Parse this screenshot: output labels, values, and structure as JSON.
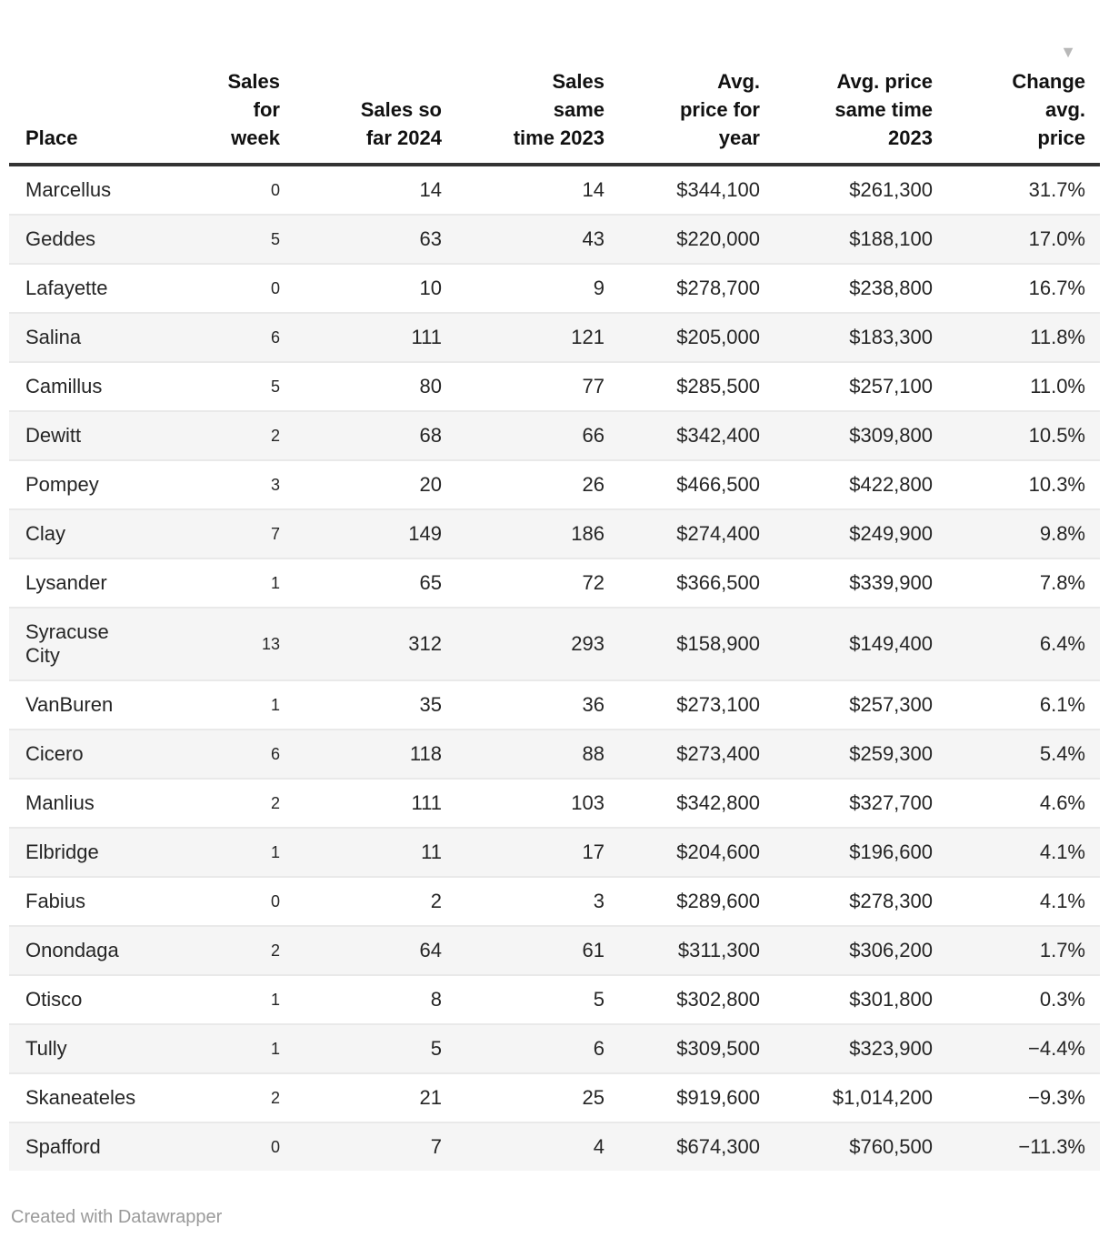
{
  "chart_data": {
    "type": "table",
    "columns": [
      {
        "key": "place",
        "label": "Place",
        "align": "left"
      },
      {
        "key": "sales_week",
        "label": "Sales\nfor\nweek",
        "align": "right"
      },
      {
        "key": "sales_2024",
        "label": "Sales so\nfar 2024",
        "align": "right"
      },
      {
        "key": "sales_2023",
        "label": "Sales\nsame\ntime 2023",
        "align": "right"
      },
      {
        "key": "avg_price_year",
        "label": "Avg.\nprice for\nyear",
        "align": "right"
      },
      {
        "key": "avg_price_2023",
        "label": "Avg. price\nsame time\n2023",
        "align": "right"
      },
      {
        "key": "change_avg_price",
        "label": "Change\navg.\nprice",
        "align": "right",
        "sorted": "desc"
      }
    ],
    "rows": [
      [
        "Marcellus",
        "0",
        "14",
        "14",
        "$344,100",
        "$261,300",
        "31.7%"
      ],
      [
        "Geddes",
        "5",
        "63",
        "43",
        "$220,000",
        "$188,100",
        "17.0%"
      ],
      [
        "Lafayette",
        "0",
        "10",
        "9",
        "$278,700",
        "$238,800",
        "16.7%"
      ],
      [
        "Salina",
        "6",
        "111",
        "121",
        "$205,000",
        "$183,300",
        "11.8%"
      ],
      [
        "Camillus",
        "5",
        "80",
        "77",
        "$285,500",
        "$257,100",
        "11.0%"
      ],
      [
        "Dewitt",
        "2",
        "68",
        "66",
        "$342,400",
        "$309,800",
        "10.5%"
      ],
      [
        "Pompey",
        "3",
        "20",
        "26",
        "$466,500",
        "$422,800",
        "10.3%"
      ],
      [
        "Clay",
        "7",
        "149",
        "186",
        "$274,400",
        "$249,900",
        "9.8%"
      ],
      [
        "Lysander",
        "1",
        "65",
        "72",
        "$366,500",
        "$339,900",
        "7.8%"
      ],
      [
        "Syracuse City",
        "13",
        "312",
        "293",
        "$158,900",
        "$149,400",
        "6.4%"
      ],
      [
        "VanBuren",
        "1",
        "35",
        "36",
        "$273,100",
        "$257,300",
        "6.1%"
      ],
      [
        "Cicero",
        "6",
        "118",
        "88",
        "$273,400",
        "$259,300",
        "5.4%"
      ],
      [
        "Manlius",
        "2",
        "111",
        "103",
        "$342,800",
        "$327,700",
        "4.6%"
      ],
      [
        "Elbridge",
        "1",
        "11",
        "17",
        "$204,600",
        "$196,600",
        "4.1%"
      ],
      [
        "Fabius",
        "0",
        "2",
        "3",
        "$289,600",
        "$278,300",
        "4.1%"
      ],
      [
        "Onondaga",
        "2",
        "64",
        "61",
        "$311,300",
        "$306,200",
        "1.7%"
      ],
      [
        "Otisco",
        "1",
        "8",
        "5",
        "$302,800",
        "$301,800",
        "0.3%"
      ],
      [
        "Tully",
        "1",
        "5",
        "6",
        "$309,500",
        "$323,900",
        "−4.4%"
      ],
      [
        "Skaneateles",
        "2",
        "21",
        "25",
        "$919,600",
        "$1,014,200",
        "−9.3%"
      ],
      [
        "Spafford",
        "0",
        "7",
        "4",
        "$674,300",
        "$760,500",
        "−11.3%"
      ]
    ],
    "title": "",
    "legend": "none",
    "grid": "row-stripes"
  },
  "icons": {
    "sort_desc_icon": "▼"
  },
  "colors": {
    "stripe": "#f5f5f5",
    "header_border": "#333333",
    "row_divider": "#e9e9e9",
    "sort_arrow": "#b8b8b8",
    "footer_text": "#9a9a9a",
    "body_text": "#252525"
  },
  "footer": {
    "credit": "Created with Datawrapper"
  }
}
